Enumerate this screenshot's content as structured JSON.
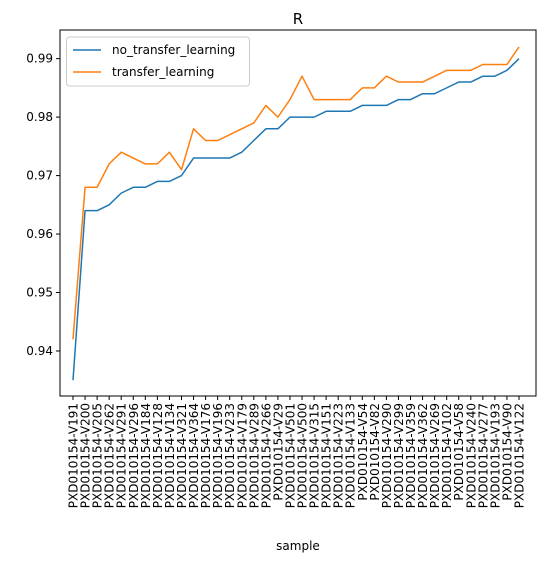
{
  "chart_data": {
    "type": "line",
    "title": "R",
    "xlabel": "sample",
    "ylabel": "",
    "ylim": [
      0.9323,
      0.9949
    ],
    "yticks": [
      0.94,
      0.95,
      0.96,
      0.97,
      0.98,
      0.99
    ],
    "ytick_labels": [
      "0.94",
      "0.95",
      "0.96",
      "0.97",
      "0.98",
      "0.99"
    ],
    "grid": false,
    "legend_position": "upper-left",
    "categories": [
      "PXD010154-V191",
      "PXD010154-V200",
      "PXD010154-V205",
      "PXD010154-V262",
      "PXD010154-V291",
      "PXD010154-V296",
      "PXD010154-V184",
      "PXD010154-V128",
      "PXD010154-V134",
      "PXD010154-V321",
      "PXD010154-V364",
      "PXD010154-V176",
      "PXD010154-V196",
      "PXD010154-V233",
      "PXD010154-V179",
      "PXD010154-V289",
      "PXD010154-V266",
      "PXD010154-V29",
      "PXD010154-V501",
      "PXD010154-V500",
      "PXD010154-V315",
      "PXD010154-V151",
      "PXD010154-V223",
      "PXD010154-V133",
      "PXD010154-V54",
      "PXD010154-V82",
      "PXD010154-V290",
      "PXD010154-V299",
      "PXD010154-V359",
      "PXD010154-V362",
      "PXD010154-V269",
      "PXD010154-V102",
      "PXD010154-V58",
      "PXD010154-V240",
      "PXD010154-V277",
      "PXD010154-V193",
      "PXD010154-V90",
      "PXD010154-V122"
    ],
    "series": [
      {
        "name": "no_transfer_learning",
        "color": "#1f77b4",
        "values": [
          0.935,
          0.964,
          0.964,
          0.965,
          0.967,
          0.968,
          0.968,
          0.969,
          0.969,
          0.97,
          0.973,
          0.973,
          0.973,
          0.973,
          0.974,
          0.976,
          0.978,
          0.978,
          0.98,
          0.98,
          0.98,
          0.981,
          0.981,
          0.981,
          0.982,
          0.982,
          0.982,
          0.983,
          0.983,
          0.984,
          0.984,
          0.985,
          0.986,
          0.986,
          0.987,
          0.987,
          0.988,
          0.99
        ]
      },
      {
        "name": "transfer_learning",
        "color": "#ff7f0e",
        "values": [
          0.942,
          0.968,
          0.968,
          0.972,
          0.974,
          0.973,
          0.972,
          0.972,
          0.974,
          0.971,
          0.978,
          0.976,
          0.976,
          0.977,
          0.978,
          0.979,
          0.982,
          0.98,
          0.983,
          0.987,
          0.983,
          0.983,
          0.983,
          0.983,
          0.985,
          0.985,
          0.987,
          0.986,
          0.986,
          0.986,
          0.987,
          0.988,
          0.988,
          0.988,
          0.989,
          0.989,
          0.989,
          0.992
        ]
      }
    ]
  }
}
